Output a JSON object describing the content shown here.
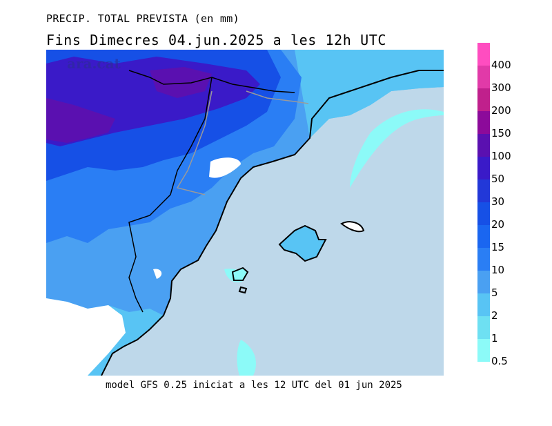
{
  "title_line1": "PRECIP. TOTAL PREVISTA (en mm)",
  "title_line2": "Fins Dimecres  04.jun.2025  a les 12h  UTC",
  "footer": "model GFS 0.25 iniciat a les 12 UTC del 01 jun 2025",
  "watermark": "ara.cat",
  "legend": {
    "levels": [
      {
        "label": "400",
        "color": "#ff4dc0"
      },
      {
        "label": "300",
        "color": "#e13aa8"
      },
      {
        "label": "200",
        "color": "#c0208c"
      },
      {
        "label": "150",
        "color": "#8c0a9a"
      },
      {
        "label": "100",
        "color": "#5a10b0"
      },
      {
        "label": "50",
        "color": "#3a1ac8"
      },
      {
        "label": "30",
        "color": "#2238d8"
      },
      {
        "label": "20",
        "color": "#1650e6"
      },
      {
        "label": "15",
        "color": "#1a66f0"
      },
      {
        "label": "10",
        "color": "#2a7ef4"
      },
      {
        "label": "5",
        "color": "#4aa0f2"
      },
      {
        "label": "2",
        "color": "#58c4f4"
      },
      {
        "label": "1",
        "color": "#6ee0f2"
      },
      {
        "label": "0.5",
        "color": "#8cfaf8"
      }
    ]
  },
  "map_colors": {
    "sea": "#bed8ea",
    "land_none": "#ffffff",
    "coast": "#000000",
    "border": "#9a9a9a"
  }
}
